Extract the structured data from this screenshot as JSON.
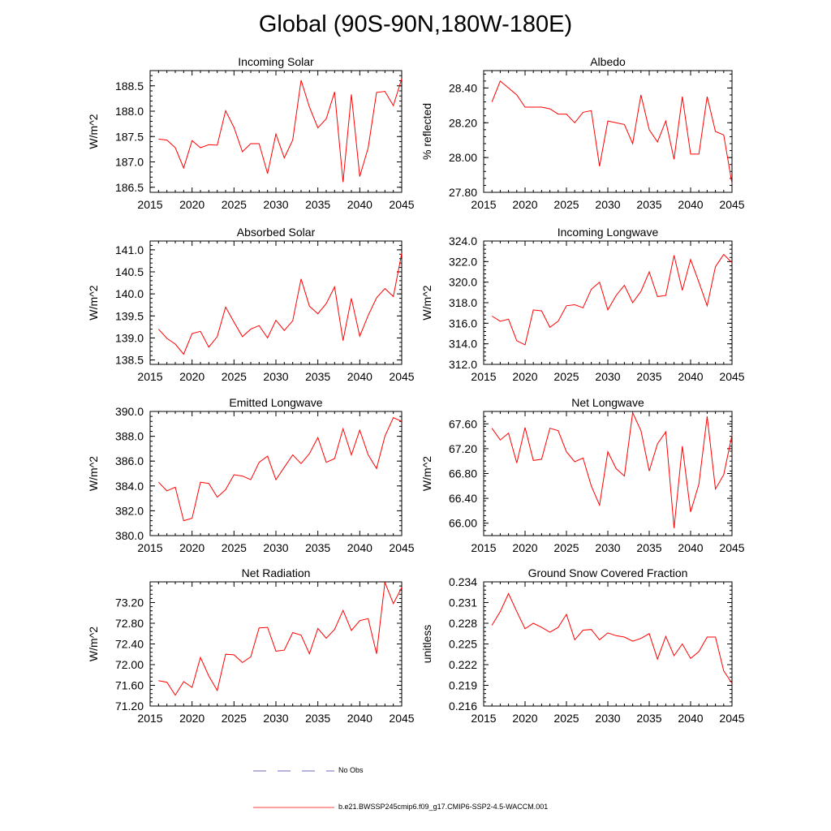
{
  "title": "Global (90S-90N,180W-180E)",
  "colors": {
    "model": "#ff0000",
    "obs": "#3a3aa8",
    "axis": "#000000"
  },
  "legend": {
    "obs_label": "No Obs",
    "model_label": "b.e21.BWSSP245cmip6.f09_g17.CMIP6-SSP2-4.5-WACCM.001"
  },
  "chart_data": [
    {
      "type": "line",
      "title": "Incoming Solar",
      "ylabel": "W/m^2",
      "xlim": [
        2015,
        2045
      ],
      "ylim": [
        186.4,
        188.8
      ],
      "yticks": [
        "186.5",
        "187.0",
        "187.5",
        "188.0",
        "188.5"
      ],
      "xticks": [
        "2015",
        "2020",
        "2025",
        "2030",
        "2035",
        "2040",
        "2045"
      ],
      "series": [
        {
          "name": "b.e21.BWSSP245cmip6.f09_g17.CMIP6-SSP2-4.5-WACCM.001",
          "x": [
            2016,
            2017,
            2018,
            2019,
            2020,
            2021,
            2022,
            2023,
            2024,
            2025,
            2026,
            2027,
            2028,
            2029,
            2030,
            2031,
            2032,
            2033,
            2034,
            2035,
            2036,
            2037,
            2038,
            2039,
            2040,
            2041,
            2042,
            2043,
            2044,
            2045
          ],
          "values": [
            187.45,
            187.43,
            187.28,
            186.88,
            187.42,
            187.28,
            187.34,
            187.33,
            188.01,
            187.68,
            187.2,
            187.36,
            187.36,
            186.77,
            187.55,
            187.08,
            187.43,
            188.61,
            188.08,
            187.67,
            187.85,
            188.38,
            186.6,
            188.33,
            186.71,
            187.28,
            188.37,
            188.39,
            188.11,
            188.64
          ]
        }
      ]
    },
    {
      "type": "line",
      "title": "Albedo",
      "ylabel": "% reflected",
      "xlim": [
        2015,
        2045
      ],
      "ylim": [
        27.8,
        28.5
      ],
      "yticks": [
        "27.80",
        "28.00",
        "28.20",
        "28.40"
      ],
      "xticks": [
        "2015",
        "2020",
        "2025",
        "2030",
        "2035",
        "2040",
        "2045"
      ],
      "series": [
        {
          "name": "b.e21.BWSSP245cmip6.f09_g17.CMIP6-SSP2-4.5-WACCM.001",
          "x": [
            2016,
            2017,
            2018,
            2019,
            2020,
            2021,
            2022,
            2023,
            2024,
            2025,
            2026,
            2027,
            2028,
            2029,
            2030,
            2031,
            2032,
            2033,
            2034,
            2035,
            2036,
            2037,
            2038,
            2039,
            2040,
            2041,
            2042,
            2043,
            2044,
            2045
          ],
          "values": [
            28.32,
            28.44,
            28.4,
            28.36,
            28.29,
            28.29,
            28.29,
            28.28,
            28.25,
            28.25,
            28.2,
            28.26,
            28.27,
            27.95,
            28.21,
            28.2,
            28.19,
            28.08,
            28.36,
            28.16,
            28.09,
            28.21,
            27.99,
            28.35,
            28.02,
            28.02,
            28.35,
            28.15,
            28.13,
            27.85
          ]
        }
      ]
    },
    {
      "type": "line",
      "title": "Absorbed Solar",
      "ylabel": "W/m^2",
      "xlim": [
        2015,
        2045
      ],
      "ylim": [
        138.4,
        141.2
      ],
      "yticks": [
        "138.5",
        "139.0",
        "139.5",
        "140.0",
        "140.5",
        "141.0"
      ],
      "xticks": [
        "2015",
        "2020",
        "2025",
        "2030",
        "2035",
        "2040",
        "2045"
      ],
      "series": [
        {
          "name": "b.e21.BWSSP245cmip6.f09_g17.CMIP6-SSP2-4.5-WACCM.001",
          "x": [
            2016,
            2017,
            2018,
            2019,
            2020,
            2021,
            2022,
            2023,
            2024,
            2025,
            2026,
            2027,
            2028,
            2029,
            2030,
            2031,
            2032,
            2033,
            2034,
            2035,
            2036,
            2037,
            2038,
            2039,
            2040,
            2041,
            2042,
            2043,
            2044,
            2045
          ],
          "values": [
            139.2,
            138.99,
            138.86,
            138.63,
            139.1,
            139.15,
            138.79,
            139.03,
            139.7,
            139.36,
            139.03,
            139.2,
            139.28,
            139.0,
            139.4,
            139.17,
            139.39,
            140.34,
            139.72,
            139.55,
            139.78,
            140.16,
            138.94,
            139.9,
            139.04,
            139.51,
            139.91,
            140.12,
            139.94,
            140.92
          ]
        }
      ]
    },
    {
      "type": "line",
      "title": "Incoming Longwave",
      "ylabel": "W/m^2",
      "xlim": [
        2015,
        2045
      ],
      "ylim": [
        312,
        324
      ],
      "yticks": [
        "312.0",
        "314.0",
        "316.0",
        "318.0",
        "320.0",
        "322.0",
        "324.0"
      ],
      "xticks": [
        "2015",
        "2020",
        "2025",
        "2030",
        "2035",
        "2040",
        "2045"
      ],
      "series": [
        {
          "name": "b.e21.BWSSP245cmip6.f09_g17.CMIP6-SSP2-4.5-WACCM.001",
          "x": [
            2016,
            2017,
            2018,
            2019,
            2020,
            2021,
            2022,
            2023,
            2024,
            2025,
            2026,
            2027,
            2028,
            2029,
            2030,
            2031,
            2032,
            2033,
            2034,
            2035,
            2036,
            2037,
            2038,
            2039,
            2040,
            2041,
            2042,
            2043,
            2044,
            2045
          ],
          "values": [
            316.7,
            316.2,
            316.4,
            314.3,
            313.9,
            317.3,
            317.2,
            315.6,
            316.2,
            317.7,
            317.8,
            317.5,
            319.3,
            320.0,
            317.3,
            318.7,
            319.7,
            318.0,
            319.1,
            321.0,
            318.6,
            318.7,
            322.6,
            319.2,
            322.2,
            320.0,
            317.7,
            321.5,
            322.7,
            321.9
          ]
        }
      ]
    },
    {
      "type": "line",
      "title": "Emitted Longwave",
      "ylabel": "W/m^2",
      "xlim": [
        2015,
        2045
      ],
      "ylim": [
        380,
        390
      ],
      "yticks": [
        "380.0",
        "382.0",
        "384.0",
        "386.0",
        "388.0",
        "390.0"
      ],
      "xticks": [
        "2015",
        "2020",
        "2025",
        "2030",
        "2035",
        "2040",
        "2045"
      ],
      "series": [
        {
          "name": "b.e21.BWSSP245cmip6.f09_g17.CMIP6-SSP2-4.5-WACCM.001",
          "x": [
            2016,
            2017,
            2018,
            2019,
            2020,
            2021,
            2022,
            2023,
            2024,
            2025,
            2026,
            2027,
            2028,
            2029,
            2030,
            2031,
            2032,
            2033,
            2034,
            2035,
            2036,
            2037,
            2038,
            2039,
            2040,
            2041,
            2042,
            2043,
            2044,
            2045
          ],
          "values": [
            384.3,
            383.6,
            383.9,
            381.2,
            381.4,
            384.3,
            384.2,
            383.1,
            383.7,
            384.9,
            384.8,
            384.5,
            385.9,
            386.4,
            384.5,
            385.5,
            386.5,
            385.8,
            386.6,
            387.9,
            385.9,
            386.2,
            388.6,
            386.5,
            388.5,
            386.5,
            385.4,
            388.0,
            389.5,
            389.2
          ]
        }
      ]
    },
    {
      "type": "line",
      "title": "Net Longwave",
      "ylabel": "W/m^2",
      "xlim": [
        2015,
        2045
      ],
      "ylim": [
        65.8,
        67.8
      ],
      "yticks": [
        "66.00",
        "66.40",
        "66.80",
        "67.20",
        "67.60"
      ],
      "xticks": [
        "2015",
        "2020",
        "2025",
        "2030",
        "2035",
        "2040",
        "2045"
      ],
      "series": [
        {
          "name": "b.e21.BWSSP245cmip6.f09_g17.CMIP6-SSP2-4.5-WACCM.001",
          "x": [
            2016,
            2017,
            2018,
            2019,
            2020,
            2021,
            2022,
            2023,
            2024,
            2025,
            2026,
            2027,
            2028,
            2029,
            2030,
            2031,
            2032,
            2033,
            2034,
            2035,
            2036,
            2037,
            2038,
            2039,
            2040,
            2041,
            2042,
            2043,
            2044,
            2045
          ],
          "values": [
            67.53,
            67.34,
            67.45,
            66.97,
            67.54,
            67.01,
            67.03,
            67.53,
            67.49,
            67.15,
            66.99,
            67.05,
            66.6,
            66.29,
            67.15,
            66.88,
            66.76,
            67.78,
            67.49,
            66.84,
            67.28,
            67.47,
            65.92,
            67.24,
            66.18,
            66.63,
            67.72,
            66.55,
            66.78,
            67.42
          ]
        }
      ]
    },
    {
      "type": "line",
      "title": "Net Radiation",
      "ylabel": "W/m^2",
      "xlim": [
        2015,
        2045
      ],
      "ylim": [
        71.2,
        73.6
      ],
      "yticks": [
        "71.20",
        "71.60",
        "72.00",
        "72.40",
        "72.80",
        "73.20"
      ],
      "xticks": [
        "2015",
        "2020",
        "2025",
        "2030",
        "2035",
        "2040",
        "2045"
      ],
      "series": [
        {
          "name": "b.e21.BWSSP245cmip6.f09_g17.CMIP6-SSP2-4.5-WACCM.001",
          "x": [
            2016,
            2017,
            2018,
            2019,
            2020,
            2021,
            2022,
            2023,
            2024,
            2025,
            2026,
            2027,
            2028,
            2029,
            2030,
            2031,
            2032,
            2033,
            2034,
            2035,
            2036,
            2037,
            2038,
            2039,
            2040,
            2041,
            2042,
            2043,
            2044,
            2045
          ],
          "values": [
            71.69,
            71.66,
            71.41,
            71.67,
            71.56,
            72.14,
            71.78,
            71.5,
            72.2,
            72.19,
            72.04,
            72.15,
            72.71,
            72.72,
            72.26,
            72.28,
            72.62,
            72.57,
            72.21,
            72.7,
            72.51,
            72.68,
            73.05,
            72.66,
            72.85,
            72.89,
            72.21,
            73.59,
            73.18,
            73.49
          ]
        }
      ]
    },
    {
      "type": "line",
      "title": "Ground Snow Covered Fraction",
      "ylabel": "unitless",
      "xlim": [
        2015,
        2045
      ],
      "ylim": [
        0.216,
        0.234
      ],
      "yticks": [
        "0.216",
        "0.219",
        "0.222",
        "0.225",
        "0.228",
        "0.231",
        "0.234"
      ],
      "xticks": [
        "2015",
        "2020",
        "2025",
        "2030",
        "2035",
        "2040",
        "2045"
      ],
      "series": [
        {
          "name": "b.e21.BWSSP245cmip6.f09_g17.CMIP6-SSP2-4.5-WACCM.001",
          "x": [
            2016,
            2017,
            2018,
            2019,
            2020,
            2021,
            2022,
            2023,
            2024,
            2025,
            2026,
            2027,
            2028,
            2029,
            2030,
            2031,
            2032,
            2033,
            2034,
            2035,
            2036,
            2037,
            2038,
            2039,
            2040,
            2041,
            2042,
            2043,
            2044,
            2045
          ],
          "values": [
            0.2277,
            0.2297,
            0.2323,
            0.2297,
            0.2272,
            0.228,
            0.2274,
            0.2267,
            0.2274,
            0.2293,
            0.2256,
            0.227,
            0.2271,
            0.2256,
            0.2266,
            0.2262,
            0.226,
            0.2254,
            0.2258,
            0.2265,
            0.2228,
            0.2261,
            0.2233,
            0.225,
            0.2229,
            0.2239,
            0.226,
            0.226,
            0.2211,
            0.2193
          ]
        }
      ]
    }
  ]
}
